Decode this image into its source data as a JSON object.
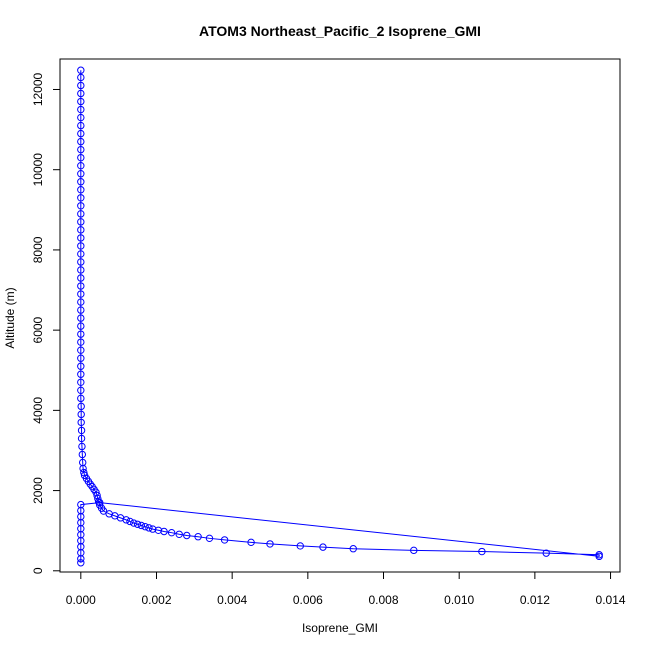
{
  "chart_data": {
    "type": "scatter",
    "title": "ATOM3 Northeast_Pacific_2 Isoprene_GMI",
    "xlabel": "Isoprene_GMI",
    "ylabel": "Altitude (m)",
    "xlim": [
      -0.00055,
      0.01425
    ],
    "ylim": [
      -30,
      12760
    ],
    "xticks": [
      0,
      0.002,
      0.004,
      0.006,
      0.008,
      0.01,
      0.012,
      0.014
    ],
    "xtick_labels": [
      "0.000",
      "0.002",
      "0.004",
      "0.006",
      "0.008",
      "0.010",
      "0.012",
      "0.014"
    ],
    "yticks": [
      0,
      2000,
      4000,
      6000,
      8000,
      10000,
      12000
    ],
    "ytick_labels": [
      "0",
      "2000",
      "4000",
      "6000",
      "8000",
      "10000",
      "12000"
    ],
    "grid": false,
    "series": [
      {
        "color": "#0000ff",
        "marker": "open-circle",
        "line": true,
        "points": [
          [
            0.0,
            12480
          ],
          [
            0.0,
            12300
          ],
          [
            0.0,
            12100
          ],
          [
            0.0,
            11900
          ],
          [
            0.0,
            11700
          ],
          [
            0.0,
            11500
          ],
          [
            0.0,
            11300
          ],
          [
            0.0,
            11100
          ],
          [
            0.0,
            10900
          ],
          [
            0.0,
            10700
          ],
          [
            0.0,
            10500
          ],
          [
            0.0,
            10300
          ],
          [
            0.0,
            10100
          ],
          [
            0.0,
            9900
          ],
          [
            0.0,
            9700
          ],
          [
            0.0,
            9500
          ],
          [
            0.0,
            9300
          ],
          [
            0.0,
            9100
          ],
          [
            0.0,
            8900
          ],
          [
            0.0,
            8700
          ],
          [
            0.0,
            8500
          ],
          [
            0.0,
            8300
          ],
          [
            0.0,
            8100
          ],
          [
            0.0,
            7900
          ],
          [
            0.0,
            7700
          ],
          [
            0.0,
            7500
          ],
          [
            0.0,
            7300
          ],
          [
            0.0,
            7100
          ],
          [
            0.0,
            6900
          ],
          [
            0.0,
            6700
          ],
          [
            0.0,
            6500
          ],
          [
            0.0,
            6300
          ],
          [
            0.0,
            6100
          ],
          [
            0.0,
            5900
          ],
          [
            0.0,
            5700
          ],
          [
            0.0,
            5500
          ],
          [
            0.0,
            5300
          ],
          [
            0.0,
            5100
          ],
          [
            0.0,
            4900
          ],
          [
            0.0,
            4700
          ],
          [
            0.0,
            4500
          ],
          [
            0.0,
            4300
          ],
          [
            1e-05,
            4100
          ],
          [
            1e-05,
            3900
          ],
          [
            1e-05,
            3700
          ],
          [
            2e-05,
            3500
          ],
          [
            2e-05,
            3300
          ],
          [
            3e-05,
            3100
          ],
          [
            4e-05,
            2900
          ],
          [
            5e-05,
            2700
          ],
          [
            6e-05,
            2550
          ],
          [
            8e-05,
            2450
          ],
          [
            0.0001,
            2380
          ],
          [
            0.00015,
            2300
          ],
          [
            0.0002,
            2230
          ],
          [
            0.00025,
            2160
          ],
          [
            0.0003,
            2100
          ],
          [
            0.00035,
            2030
          ],
          [
            0.0004,
            1960
          ],
          [
            0.00043,
            1880
          ],
          [
            0.00045,
            1800
          ],
          [
            0.00047,
            1720
          ],
          [
            0.0005,
            1640
          ],
          [
            0.00055,
            1560
          ],
          [
            0.0006,
            1490
          ],
          [
            0.00075,
            1420
          ],
          [
            0.0009,
            1370
          ],
          [
            0.00105,
            1320
          ],
          [
            0.0012,
            1270
          ],
          [
            0.0013,
            1230
          ],
          [
            0.0014,
            1190
          ],
          [
            0.0015,
            1160
          ],
          [
            0.0016,
            1130
          ],
          [
            0.0017,
            1100
          ],
          [
            0.0018,
            1070
          ],
          [
            0.0019,
            1040
          ],
          [
            0.00205,
            1010
          ],
          [
            0.0022,
            980
          ],
          [
            0.0024,
            950
          ],
          [
            0.0026,
            910
          ],
          [
            0.0028,
            880
          ],
          [
            0.0031,
            850
          ],
          [
            0.0034,
            810
          ],
          [
            0.0038,
            770
          ],
          [
            0.0045,
            710
          ],
          [
            0.005,
            670
          ],
          [
            0.0058,
            620
          ],
          [
            0.0064,
            590
          ],
          [
            0.0072,
            550
          ],
          [
            0.0088,
            510
          ],
          [
            0.0106,
            480
          ],
          [
            0.0123,
            440
          ],
          [
            0.0137,
            400
          ],
          [
            0.0137,
            360
          ],
          [
            0.0005,
            1700
          ],
          [
            0.0,
            1650
          ],
          [
            0.0,
            1500
          ],
          [
            0.0,
            1350
          ],
          [
            0.0,
            1200
          ],
          [
            0.0,
            1050
          ],
          [
            0.0,
            900
          ],
          [
            0.0,
            750
          ],
          [
            0.0,
            600
          ],
          [
            0.0,
            450
          ],
          [
            0.0,
            300
          ],
          [
            0.0,
            200
          ]
        ]
      }
    ]
  }
}
